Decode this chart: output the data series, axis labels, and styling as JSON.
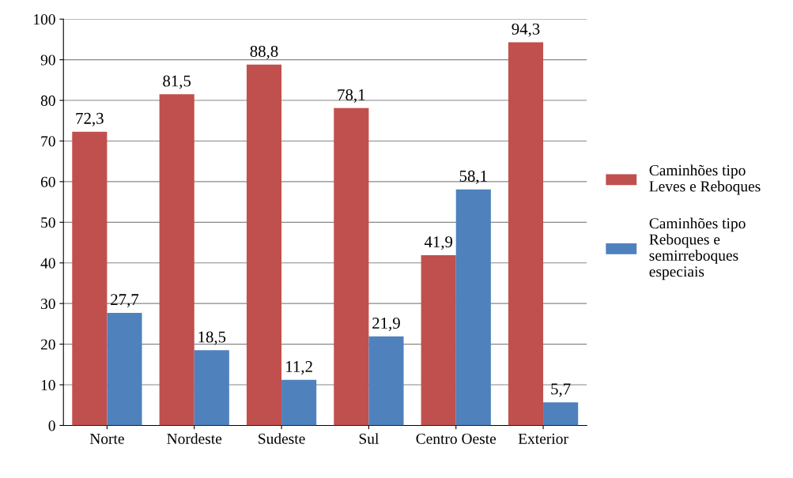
{
  "chart_data": {
    "type": "bar",
    "categories": [
      "Norte",
      "Nordeste",
      "Sudeste",
      "Sul",
      "Centro Oeste",
      "Exterior"
    ],
    "series": [
      {
        "name": "Caminhões tipo Leves e Reboques",
        "color": "#c0504d",
        "values": [
          72.3,
          81.5,
          88.8,
          78.1,
          41.9,
          94.3
        ],
        "value_labels": [
          "72,3",
          "81,5",
          "88,8",
          "78,1",
          "41,9",
          "94,3"
        ]
      },
      {
        "name": "Caminhões tipo Reboques e semirreboques especiais",
        "color": "#4f81bd",
        "values": [
          27.7,
          18.5,
          11.2,
          21.9,
          58.1,
          5.7
        ],
        "value_labels": [
          "27,7",
          "18,5",
          "11,2",
          "21,9",
          "58,1",
          "5,7"
        ]
      }
    ],
    "ylim": [
      0,
      100
    ],
    "yticks": [
      0,
      10,
      20,
      30,
      40,
      50,
      60,
      70,
      80,
      90,
      100
    ],
    "grid": "y",
    "legend": "right"
  }
}
